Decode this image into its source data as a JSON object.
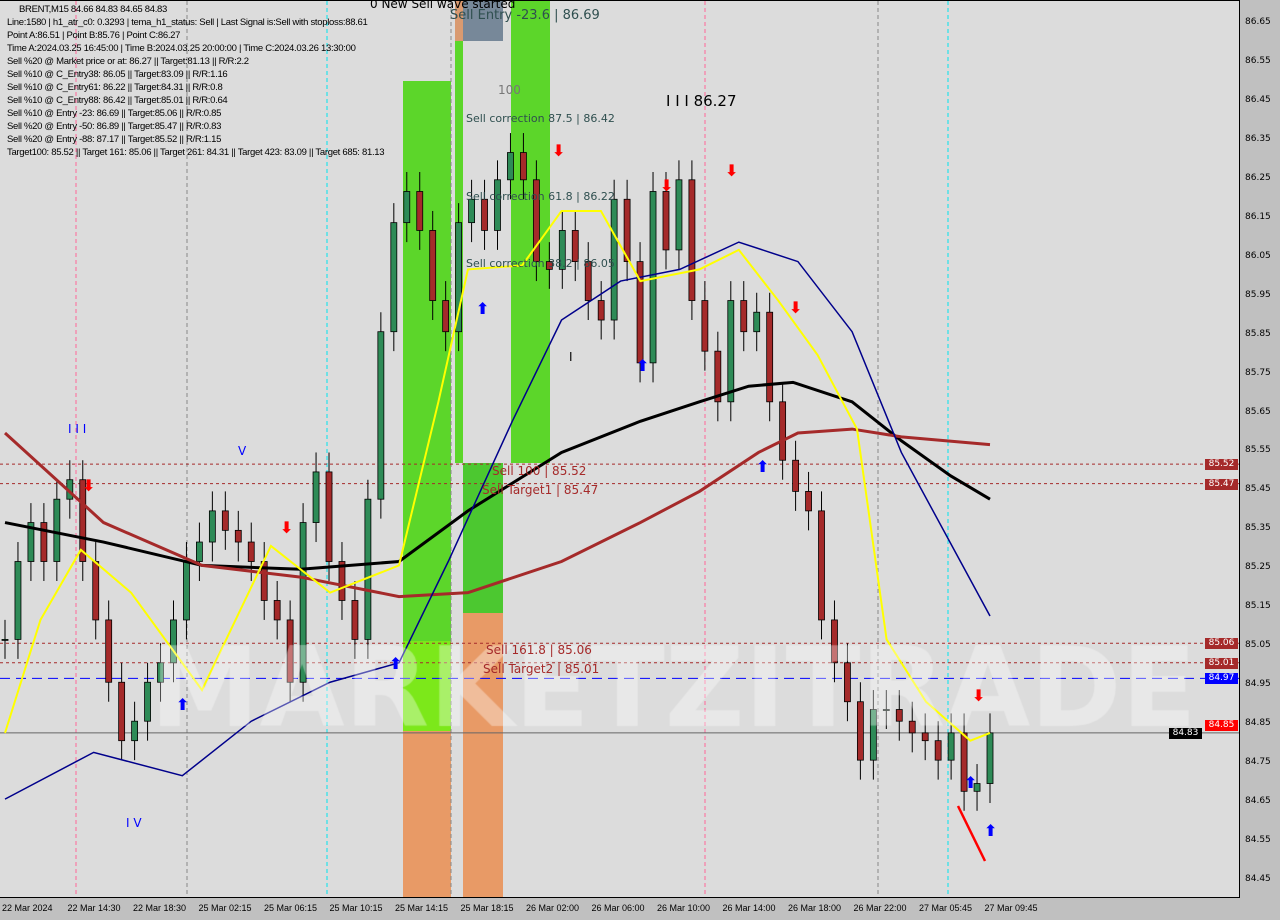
{
  "header": {
    "symbol_line": "BRENT,M15  84.66 84.83 84.65 84.83",
    "lines": [
      "Line:1580 | h1_atr_c0: 0.3293 | tema_h1_status: Sell | Last Signal is:Sell with stoploss:88.61",
      "Point A:86.51 | Point B:85.76 | Point C:86.27",
      "Time A:2024.03.25 16:45:00 | Time B:2024.03.25 20:00:00 | Time C:2024.03.26 13:30:00",
      "Sell %20 @ Market price or at: 86.27 || Target:81.13 || R/R:2.2",
      "Sell %10 @ C_Entry38: 86.05 || Target:83.09 || R/R:1.16",
      "Sell %10 @ C_Entry61: 86.22 || Target:84.31 || R/R:0.8",
      "Sell %10 @ C_Entry88: 86.42 || Target:85.01 || R/R:0.64",
      "Sell %10 @ Entry -23: 86.69 || Target:85.06 || R/R:0.85",
      "Sell %20 @ Entry -50: 86.89 || Target:85.47 || R/R:0.83",
      "Sell %20 @ Entry -88: 87.17 || Target:85.52 || R/R:1.15",
      "Target100: 85.52 || Target 161: 85.06 || Target 261: 84.31 || Target 423: 83.09 || Target 685: 81.13"
    ]
  },
  "annotations": {
    "wave": "0 New Sell wave started",
    "entry": "Sell Entry -23.6 | 86.69",
    "hundred": "100",
    "c875": "Sell correction 87.5 | 86.42",
    "c618": "Sell correction 61.8 | 86.22",
    "c382": "Sell correction 38.2 | 86.05",
    "pointc": "I I I 86.27",
    "s100": "Sell 100 | 85.52",
    "t1": "Sell Target1 | 85.47",
    "s1618": "Sell 161.8 | 85.06",
    "t2": "Sell Target2 | 85.01",
    "w3": "I I I",
    "w5": "V",
    "w4": "I V",
    "w1": "I"
  },
  "watermark": "MARKETZITRADE",
  "chart_data": {
    "type": "candlestick",
    "symbol": "BRENT",
    "timeframe": "M15",
    "ylim": [
      84.42,
      86.7
    ],
    "y_ticks": [
      86.65,
      86.55,
      86.45,
      86.35,
      86.25,
      86.15,
      86.05,
      85.95,
      85.85,
      85.75,
      85.65,
      85.55,
      85.45,
      85.35,
      85.25,
      85.15,
      85.05,
      84.95,
      84.85,
      84.75,
      84.65,
      84.55,
      84.45
    ],
    "x_ticks": [
      "22 Mar 2024",
      "22 Mar 14:30",
      "22 Mar 18:30",
      "25 Mar 02:15",
      "25 Mar 06:15",
      "25 Mar 10:15",
      "25 Mar 14:15",
      "25 Mar 18:15",
      "26 Mar 02:00",
      "26 Mar 06:00",
      "26 Mar 10:00",
      "26 Mar 14:00",
      "26 Mar 18:00",
      "26 Mar 22:00",
      "27 Mar 05:45",
      "27 Mar 09:45"
    ],
    "closes": [
      85.07,
      85.27,
      85.37,
      85.27,
      85.43,
      85.48,
      85.27,
      85.12,
      84.96,
      84.81,
      84.86,
      84.96,
      85.01,
      85.12,
      85.27,
      85.32,
      85.4,
      85.35,
      85.32,
      85.27,
      85.17,
      85.12,
      84.96,
      85.37,
      85.5,
      85.27,
      85.17,
      85.07,
      85.43,
      85.86,
      86.14,
      86.22,
      86.12,
      85.94,
      85.86,
      86.14,
      86.2,
      86.12,
      86.25,
      86.32,
      86.25,
      86.04,
      86.02,
      86.12,
      86.04,
      85.94,
      85.89,
      86.2,
      86.04,
      85.78,
      86.22,
      86.07,
      86.25,
      85.94,
      85.81,
      85.68,
      85.94,
      85.86,
      85.91,
      85.68,
      85.53,
      85.45,
      85.4,
      85.12,
      85.01,
      84.91,
      84.76,
      84.89,
      84.89,
      84.86,
      84.83,
      84.81,
      84.76,
      84.83,
      84.68,
      84.7,
      84.83
    ],
    "series": [
      {
        "color": "#000000",
        "values": [
          85.37,
          85.32,
          85.26,
          85.25,
          85.27,
          85.4,
          85.55,
          85.63,
          85.68,
          85.72,
          85.73,
          85.68,
          85.58,
          85.49,
          85.43
        ],
        "at": [
          0,
          0.1,
          0.2,
          0.3,
          0.4,
          0.47,
          0.565,
          0.645,
          0.705,
          0.755,
          0.8,
          0.86,
          0.91,
          0.96,
          1
        ]
      },
      {
        "color": "#a52a2a",
        "values": [
          85.6,
          85.37,
          85.26,
          85.23,
          85.18,
          85.19,
          85.27,
          85.37,
          85.45,
          85.55,
          85.6,
          85.61,
          85.59,
          85.57
        ],
        "at": [
          0,
          0.1,
          0.2,
          0.3,
          0.4,
          0.47,
          0.565,
          0.645,
          0.705,
          0.765,
          0.805,
          0.86,
          0.91,
          1
        ]
      },
      {
        "color": "#00008b",
        "values": [
          84.66,
          84.78,
          84.72,
          84.86,
          84.96,
          85.01,
          85.27,
          85.63,
          85.89,
          85.99,
          86.02,
          86.09,
          86.04,
          85.86,
          85.55,
          85.27,
          85.13
        ],
        "at": [
          0,
          0.09,
          0.18,
          0.25,
          0.33,
          0.4,
          0.45,
          0.515,
          0.565,
          0.625,
          0.685,
          0.745,
          0.805,
          0.86,
          0.91,
          0.97,
          1
        ]
      },
      {
        "color": "#ffff00",
        "values": [
          84.83,
          85.12,
          85.3,
          85.19,
          84.94,
          85.31,
          85.19,
          85.26,
          85.68,
          86.02,
          86.03,
          86.17,
          86.17,
          85.99,
          86.02,
          86.07,
          85.94,
          85.8,
          85.61,
          85.07,
          84.91,
          84.81,
          84.83
        ],
        "at": [
          0,
          0.036,
          0.077,
          0.128,
          0.2,
          0.27,
          0.33,
          0.4,
          0.44,
          0.47,
          0.525,
          0.565,
          0.605,
          0.645,
          0.705,
          0.745,
          0.785,
          0.825,
          0.865,
          0.895,
          0.935,
          0.98,
          1
        ]
      }
    ],
    "levels": [
      {
        "price": 85.52,
        "color": "#a52a2a"
      },
      {
        "price": 85.47,
        "color": "#a52a2a"
      },
      {
        "price": 85.06,
        "color": "#a52a2a"
      },
      {
        "price": 85.01,
        "color": "#a52a2a"
      },
      {
        "price": 84.97,
        "color": "#0000ff"
      },
      {
        "price": 84.83,
        "color": "#000000"
      }
    ],
    "price_tags": [
      {
        "price": 85.52,
        "label": "85.52",
        "color": "#a52a2a"
      },
      {
        "price": 85.47,
        "label": "85.47",
        "color": "#a52a2a"
      },
      {
        "price": 85.06,
        "label": "85.06",
        "color": "#a52a2a"
      },
      {
        "price": 85.01,
        "label": "85.01",
        "color": "#a52a2a"
      },
      {
        "price": 84.97,
        "label": "84.97",
        "color": "#0000ff"
      },
      {
        "price": 84.85,
        "label": "84.85",
        "color": "#ff0000"
      },
      {
        "price": 84.83,
        "label": "84.83",
        "color": "#000000"
      }
    ],
    "bull_color": "#2e8b57",
    "bear_color": "#a52a2a"
  }
}
